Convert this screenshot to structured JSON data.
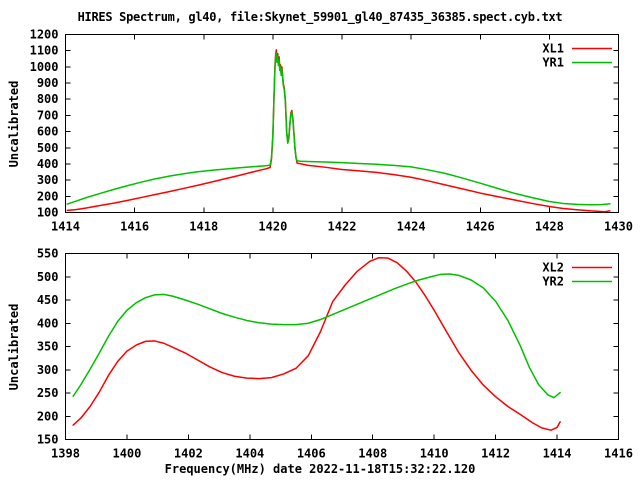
{
  "title": "HIRES Spectrum, gl40, file:Skynet_59901_gl40_87435_36385.spect.cyb.txt",
  "colors": {
    "background": "#ffffff",
    "border": "#000000",
    "text": "#000000",
    "red_series": "#ff0000",
    "green_series": "#00c000"
  },
  "chart_data": [
    {
      "type": "line",
      "title": "",
      "xlabel": "",
      "ylabel": "Uncalibrated",
      "xlim": [
        1414,
        1430
      ],
      "ylim": [
        100,
        1200
      ],
      "xticks": [
        1414,
        1416,
        1418,
        1420,
        1422,
        1424,
        1426,
        1428,
        1430
      ],
      "yticks": [
        100,
        200,
        300,
        400,
        500,
        600,
        700,
        800,
        900,
        1000,
        1100,
        1200
      ],
      "grid": false,
      "legend_position": "top-right-inside",
      "series": [
        {
          "name": "XL1",
          "color": "#ff0000",
          "points": [
            [
              1414.05,
              113
            ],
            [
              1414.3,
              118
            ],
            [
              1414.6,
              128
            ],
            [
              1415,
              143
            ],
            [
              1415.4,
              158
            ],
            [
              1415.8,
              175
            ],
            [
              1416.2,
              193
            ],
            [
              1416.6,
              211
            ],
            [
              1417,
              229
            ],
            [
              1417.4,
              248
            ],
            [
              1417.8,
              267
            ],
            [
              1418.2,
              287
            ],
            [
              1418.6,
              308
            ],
            [
              1419,
              328
            ],
            [
              1419.3,
              344
            ],
            [
              1419.6,
              360
            ],
            [
              1419.8,
              370
            ],
            [
              1419.92,
              378
            ],
            [
              1419.96,
              430
            ],
            [
              1420,
              570
            ],
            [
              1420.03,
              790
            ],
            [
              1420.06,
              1005
            ],
            [
              1420.08,
              1075
            ],
            [
              1420.1,
              1105
            ],
            [
              1420.12,
              1040
            ],
            [
              1420.14,
              1082
            ],
            [
              1420.16,
              1020
            ],
            [
              1420.18,
              1062
            ],
            [
              1420.2,
              992
            ],
            [
              1420.22,
              1012
            ],
            [
              1420.24,
              962
            ],
            [
              1420.26,
              1000
            ],
            [
              1420.28,
              952
            ],
            [
              1420.3,
              900
            ],
            [
              1420.33,
              868
            ],
            [
              1420.36,
              798
            ],
            [
              1420.38,
              700
            ],
            [
              1420.4,
              600
            ],
            [
              1420.43,
              535
            ],
            [
              1420.46,
              560
            ],
            [
              1420.49,
              645
            ],
            [
              1420.52,
              715
            ],
            [
              1420.55,
              730
            ],
            [
              1420.58,
              678
            ],
            [
              1420.61,
              588
            ],
            [
              1420.64,
              498
            ],
            [
              1420.67,
              440
            ],
            [
              1420.7,
              405
            ],
            [
              1420.8,
              401
            ],
            [
              1421,
              392
            ],
            [
              1421.5,
              380
            ],
            [
              1422,
              366
            ],
            [
              1422.5,
              357
            ],
            [
              1423,
              348
            ],
            [
              1423.5,
              334
            ],
            [
              1424,
              318
            ],
            [
              1424.5,
              295
            ],
            [
              1425,
              270
            ],
            [
              1425.5,
              245
            ],
            [
              1426,
              220
            ],
            [
              1426.5,
              198
            ],
            [
              1427,
              177
            ],
            [
              1427.5,
              156
            ],
            [
              1428,
              137
            ],
            [
              1428.4,
              125
            ],
            [
              1428.8,
              117
            ],
            [
              1429.2,
              110
            ],
            [
              1429.45,
              107
            ],
            [
              1429.6,
              105
            ],
            [
              1429.75,
              110
            ]
          ]
        },
        {
          "name": "YR1",
          "color": "#00c000",
          "points": [
            [
              1414.05,
              152
            ],
            [
              1414.3,
              170
            ],
            [
              1414.6,
              192
            ],
            [
              1415,
              218
            ],
            [
              1415.4,
              243
            ],
            [
              1415.8,
              266
            ],
            [
              1416.2,
              288
            ],
            [
              1416.6,
              308
            ],
            [
              1417,
              325
            ],
            [
              1417.4,
              339
            ],
            [
              1417.8,
              351
            ],
            [
              1418.2,
              360
            ],
            [
              1418.6,
              368
            ],
            [
              1419,
              376
            ],
            [
              1419.4,
              383
            ],
            [
              1419.8,
              389
            ],
            [
              1419.92,
              393
            ],
            [
              1419.96,
              440
            ],
            [
              1420,
              585
            ],
            [
              1420.03,
              805
            ],
            [
              1420.06,
              988
            ],
            [
              1420.08,
              1058
            ],
            [
              1420.1,
              1085
            ],
            [
              1420.12,
              1028
            ],
            [
              1420.14,
              1065
            ],
            [
              1420.16,
              1008
            ],
            [
              1420.18,
              1045
            ],
            [
              1420.2,
              978
            ],
            [
              1420.22,
              1000
            ],
            [
              1420.24,
              948
            ],
            [
              1420.26,
              985
            ],
            [
              1420.28,
              940
            ],
            [
              1420.3,
              888
            ],
            [
              1420.33,
              858
            ],
            [
              1420.36,
              788
            ],
            [
              1420.38,
              690
            ],
            [
              1420.4,
              592
            ],
            [
              1420.43,
              528
            ],
            [
              1420.46,
              552
            ],
            [
              1420.49,
              636
            ],
            [
              1420.52,
              705
            ],
            [
              1420.55,
              720
            ],
            [
              1420.58,
              670
            ],
            [
              1420.61,
              582
            ],
            [
              1420.64,
              492
            ],
            [
              1420.67,
              438
            ],
            [
              1420.7,
              420
            ],
            [
              1420.8,
              417
            ],
            [
              1421,
              415
            ],
            [
              1421.5,
              412
            ],
            [
              1422,
              408
            ],
            [
              1422.5,
              403
            ],
            [
              1423,
              398
            ],
            [
              1423.5,
              391
            ],
            [
              1424,
              382
            ],
            [
              1424.5,
              363
            ],
            [
              1425,
              341
            ],
            [
              1425.5,
              312
            ],
            [
              1426,
              281
            ],
            [
              1426.5,
              249
            ],
            [
              1427,
              218
            ],
            [
              1427.5,
              192
            ],
            [
              1428,
              168
            ],
            [
              1428.4,
              156
            ],
            [
              1428.8,
              150
            ],
            [
              1429.2,
              148
            ],
            [
              1429.5,
              149
            ],
            [
              1429.75,
              154
            ]
          ]
        }
      ]
    },
    {
      "type": "line",
      "title": "",
      "xlabel": "Frequency(MHz) date 2022-11-18T15:32:22.120",
      "ylabel": "Uncalibrated",
      "xlim": [
        1398,
        1416
      ],
      "ylim": [
        150,
        550
      ],
      "xticks": [
        1398,
        1400,
        1402,
        1404,
        1406,
        1408,
        1410,
        1412,
        1414,
        1416
      ],
      "yticks": [
        150,
        200,
        250,
        300,
        350,
        400,
        450,
        500,
        550
      ],
      "grid": false,
      "legend_position": "top-right-inside",
      "series": [
        {
          "name": "XL2",
          "color": "#ff0000",
          "points": [
            [
              1398.25,
              181
            ],
            [
              1398.5,
              196
            ],
            [
              1398.8,
              221
            ],
            [
              1399.1,
              252
            ],
            [
              1399.4,
              288
            ],
            [
              1399.7,
              318
            ],
            [
              1400,
              340
            ],
            [
              1400.3,
              353
            ],
            [
              1400.6,
              361
            ],
            [
              1400.9,
              362
            ],
            [
              1401.2,
              357
            ],
            [
              1401.5,
              348
            ],
            [
              1401.9,
              336
            ],
            [
              1402.3,
              321
            ],
            [
              1402.7,
              306
            ],
            [
              1403.1,
              294
            ],
            [
              1403.5,
              286
            ],
            [
              1403.9,
              282
            ],
            [
              1404.3,
              281
            ],
            [
              1404.7,
              283
            ],
            [
              1405.1,
              291
            ],
            [
              1405.5,
              303
            ],
            [
              1405.9,
              330
            ],
            [
              1406.3,
              382
            ],
            [
              1406.7,
              447
            ],
            [
              1407.1,
              482
            ],
            [
              1407.5,
              512
            ],
            [
              1407.9,
              533
            ],
            [
              1408.2,
              541
            ],
            [
              1408.5,
              540
            ],
            [
              1408.8,
              530
            ],
            [
              1409.1,
              512
            ],
            [
              1409.4,
              489
            ],
            [
              1409.7,
              460
            ],
            [
              1410,
              428
            ],
            [
              1410.4,
              382
            ],
            [
              1410.8,
              337
            ],
            [
              1411.2,
              299
            ],
            [
              1411.6,
              267
            ],
            [
              1412,
              242
            ],
            [
              1412.4,
              221
            ],
            [
              1412.8,
              204
            ],
            [
              1413.2,
              186
            ],
            [
              1413.5,
              175
            ],
            [
              1413.8,
              170
            ],
            [
              1414,
              176
            ],
            [
              1414.1,
              188
            ]
          ]
        },
        {
          "name": "YR2",
          "color": "#00c000",
          "points": [
            [
              1398.25,
              243
            ],
            [
              1398.5,
              268
            ],
            [
              1398.8,
              301
            ],
            [
              1399.1,
              336
            ],
            [
              1399.4,
              372
            ],
            [
              1399.7,
              404
            ],
            [
              1400,
              428
            ],
            [
              1400.3,
              444
            ],
            [
              1400.6,
              455
            ],
            [
              1400.9,
              461
            ],
            [
              1401.2,
              462
            ],
            [
              1401.5,
              458
            ],
            [
              1401.9,
              450
            ],
            [
              1402.3,
              441
            ],
            [
              1402.7,
              431
            ],
            [
              1403.1,
              421
            ],
            [
              1403.5,
              413
            ],
            [
              1403.9,
              406
            ],
            [
              1404.3,
              401
            ],
            [
              1404.7,
              398
            ],
            [
              1405.1,
              397
            ],
            [
              1405.5,
              397
            ],
            [
              1405.9,
              400
            ],
            [
              1406.3,
              408
            ],
            [
              1406.7,
              419
            ],
            [
              1407.1,
              430
            ],
            [
              1407.5,
              441
            ],
            [
              1407.9,
              452
            ],
            [
              1408.3,
              463
            ],
            [
              1408.7,
              474
            ],
            [
              1409.1,
              484
            ],
            [
              1409.5,
              493
            ],
            [
              1409.9,
              500
            ],
            [
              1410.2,
              505
            ],
            [
              1410.5,
              506
            ],
            [
              1410.8,
              503
            ],
            [
              1411.2,
              493
            ],
            [
              1411.6,
              476
            ],
            [
              1412,
              447
            ],
            [
              1412.4,
              406
            ],
            [
              1412.8,
              352
            ],
            [
              1413.1,
              305
            ],
            [
              1413.4,
              268
            ],
            [
              1413.7,
              246
            ],
            [
              1413.9,
              240
            ],
            [
              1414.1,
              251
            ]
          ]
        }
      ]
    }
  ]
}
